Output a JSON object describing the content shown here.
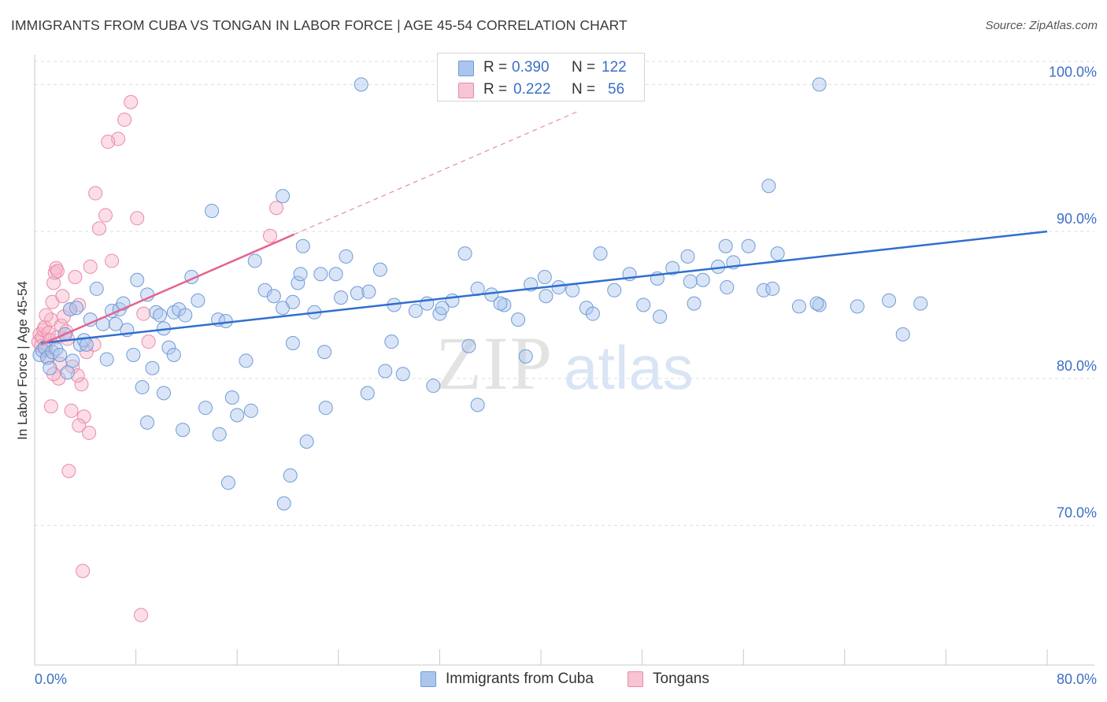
{
  "header": {
    "title": "IMMIGRANTS FROM CUBA VS TONGAN IN LABOR FORCE | AGE 45-54 CORRELATION CHART",
    "source": "Source: ZipAtlas.com"
  },
  "legend_stats": {
    "r_label": "R =",
    "n_label": "N =",
    "rows": [
      {
        "r": "0.390",
        "n": "122"
      },
      {
        "r": "0.222",
        "n": "56"
      }
    ]
  },
  "bottom_legend": {
    "series1": "Immigrants from Cuba",
    "series2": "Tongans"
  },
  "watermark": {
    "zip": "ZIP",
    "atlas": "atlas"
  },
  "colors": {
    "blue_fill": "#aac6ee",
    "blue_stroke": "#6f9bd8",
    "blue_line": "#2f6fd0",
    "pink_fill": "#f6b6c9",
    "pink_stroke": "#ea8aa8",
    "pink_line": "#e4648f",
    "tick_label": "#3b6fc4",
    "grid": "#dddddd"
  },
  "chart_data": {
    "type": "scatter",
    "title": "IMMIGRANTS FROM CUBA VS TONGAN IN LABOR FORCE | AGE 45-54 CORRELATION CHART",
    "xlabel": "",
    "ylabel": "In Labor Force | Age 45-54",
    "xlim": [
      0,
      80
    ],
    "ylim": [
      60.5,
      102
    ],
    "x_tick_labels": [
      "0.0%",
      "80.0%"
    ],
    "y_ticks": [
      70,
      80,
      90,
      100
    ],
    "y_tick_labels": [
      "70.0%",
      "80.0%",
      "90.0%",
      "100.0%"
    ],
    "grid": true,
    "legend_position": "top-center",
    "series": [
      {
        "name": "Immigrants from Cuba",
        "R": 0.39,
        "N": 122,
        "trend": {
          "x": [
            0.5,
            80
          ],
          "y": [
            82.4,
            90.0
          ]
        },
        "points": [
          [
            0.4,
            81.6
          ],
          [
            0.6,
            81.9
          ],
          [
            0.8,
            82.1
          ],
          [
            1.0,
            81.4
          ],
          [
            1.2,
            80.7
          ],
          [
            1.4,
            81.8
          ],
          [
            1.7,
            82.0
          ],
          [
            2.0,
            81.6
          ],
          [
            2.4,
            83.0
          ],
          [
            2.6,
            80.4
          ],
          [
            2.8,
            84.7
          ],
          [
            3.0,
            81.2
          ],
          [
            3.3,
            84.8
          ],
          [
            3.6,
            82.3
          ],
          [
            3.9,
            82.6
          ],
          [
            4.1,
            82.3
          ],
          [
            4.4,
            84.0
          ],
          [
            4.9,
            86.1
          ],
          [
            5.4,
            83.7
          ],
          [
            5.7,
            81.3
          ],
          [
            6.1,
            84.6
          ],
          [
            6.7,
            84.7
          ],
          [
            7.0,
            85.1
          ],
          [
            7.3,
            83.3
          ],
          [
            7.8,
            81.6
          ],
          [
            8.1,
            86.7
          ],
          [
            8.5,
            79.4
          ],
          [
            8.9,
            85.7
          ],
          [
            9.3,
            80.7
          ],
          [
            9.6,
            84.5
          ],
          [
            9.9,
            84.3
          ],
          [
            10.2,
            83.4
          ],
          [
            10.6,
            82.1
          ],
          [
            11.0,
            84.5
          ],
          [
            11.4,
            84.7
          ],
          [
            11.9,
            84.3
          ],
          [
            12.4,
            86.9
          ],
          [
            12.9,
            85.3
          ],
          [
            13.5,
            78.0
          ],
          [
            14.0,
            91.4
          ],
          [
            14.5,
            84.0
          ],
          [
            15.3,
            72.9
          ],
          [
            16.0,
            77.5
          ],
          [
            16.7,
            81.2
          ],
          [
            17.4,
            88.0
          ],
          [
            18.2,
            86.0
          ],
          [
            18.9,
            85.6
          ],
          [
            19.6,
            84.8
          ],
          [
            20.4,
            85.2
          ],
          [
            21.2,
            89.0
          ],
          [
            22.1,
            84.5
          ],
          [
            22.9,
            81.8
          ],
          [
            23.8,
            87.1
          ],
          [
            24.6,
            88.3
          ],
          [
            25.5,
            85.8
          ],
          [
            26.4,
            85.9
          ],
          [
            27.3,
            87.4
          ],
          [
            28.2,
            82.5
          ],
          [
            29.1,
            80.3
          ],
          [
            30.1,
            84.6
          ],
          [
            31.0,
            85.1
          ],
          [
            32.0,
            84.4
          ],
          [
            33.0,
            85.3
          ],
          [
            34.0,
            88.5
          ],
          [
            35.0,
            86.1
          ],
          [
            36.1,
            85.7
          ],
          [
            37.1,
            85.0
          ],
          [
            38.2,
            84.0
          ],
          [
            39.2,
            86.4
          ],
          [
            40.3,
            86.9
          ],
          [
            41.4,
            86.2
          ],
          [
            42.5,
            86.0
          ],
          [
            43.6,
            84.8
          ],
          [
            44.7,
            88.5
          ],
          [
            45.8,
            86.0
          ],
          [
            47.0,
            87.1
          ],
          [
            48.1,
            85.0
          ],
          [
            49.2,
            86.8
          ],
          [
            50.4,
            87.5
          ],
          [
            51.6,
            88.3
          ],
          [
            52.8,
            86.7
          ],
          [
            54.0,
            87.6
          ],
          [
            55.2,
            87.9
          ],
          [
            56.4,
            89.0
          ],
          [
            57.6,
            86.0
          ],
          [
            21.5,
            75.7
          ],
          [
            20.2,
            73.4
          ],
          [
            19.7,
            71.5
          ],
          [
            23.0,
            78.0
          ],
          [
            26.3,
            79.0
          ],
          [
            31.5,
            79.5
          ],
          [
            27.7,
            80.5
          ],
          [
            35.0,
            78.2
          ],
          [
            20.8,
            86.5
          ],
          [
            21.0,
            87.1
          ],
          [
            22.6,
            87.1
          ],
          [
            15.6,
            78.7
          ],
          [
            17.1,
            77.8
          ],
          [
            10.2,
            79.0
          ],
          [
            8.9,
            77.0
          ],
          [
            11.7,
            76.5
          ],
          [
            14.6,
            76.2
          ],
          [
            6.4,
            83.7
          ],
          [
            11.0,
            81.6
          ],
          [
            15.1,
            83.9
          ],
          [
            20.4,
            82.4
          ],
          [
            34.3,
            82.2
          ],
          [
            38.8,
            81.5
          ],
          [
            24.2,
            85.5
          ],
          [
            28.4,
            85.0
          ],
          [
            32.2,
            84.8
          ],
          [
            36.8,
            85.1
          ],
          [
            40.4,
            85.6
          ],
          [
            44.1,
            84.4
          ],
          [
            49.4,
            84.2
          ],
          [
            52.1,
            85.1
          ],
          [
            54.7,
            86.2
          ],
          [
            58.3,
            86.1
          ],
          [
            62.0,
            85.0
          ],
          [
            65.0,
            84.9
          ],
          [
            67.5,
            85.3
          ],
          [
            68.6,
            83.0
          ],
          [
            70.0,
            85.1
          ],
          [
            61.8,
            85.1
          ],
          [
            58.0,
            93.1
          ],
          [
            19.6,
            92.4
          ],
          [
            62.0,
            100.0
          ],
          [
            25.8,
            100.0
          ],
          [
            60.4,
            84.9
          ],
          [
            58.7,
            88.5
          ],
          [
            54.6,
            89.0
          ],
          [
            51.8,
            86.6
          ]
        ]
      },
      {
        "name": "Tongans",
        "R": 0.222,
        "N": 56,
        "trend": {
          "x": [
            0.5,
            20.5
          ],
          "y": [
            82.3,
            89.8
          ]
        },
        "trend_extension": {
          "x": [
            20.5,
            43.0
          ],
          "y": [
            89.8,
            98.2
          ]
        },
        "points": [
          [
            0.3,
            82.5
          ],
          [
            0.4,
            83.0
          ],
          [
            0.5,
            82.2
          ],
          [
            0.6,
            82.8
          ],
          [
            0.7,
            83.3
          ],
          [
            0.8,
            83.5
          ],
          [
            0.9,
            82.0
          ],
          [
            1.0,
            81.5
          ],
          [
            1.1,
            83.1
          ],
          [
            1.2,
            82.6
          ],
          [
            1.3,
            84.0
          ],
          [
            1.4,
            85.2
          ],
          [
            1.5,
            86.5
          ],
          [
            1.6,
            87.2
          ],
          [
            1.7,
            87.5
          ],
          [
            1.8,
            82.8
          ],
          [
            1.9,
            80.0
          ],
          [
            2.0,
            81.0
          ],
          [
            2.1,
            83.6
          ],
          [
            2.3,
            84.2
          ],
          [
            2.5,
            83.2
          ],
          [
            2.6,
            82.7
          ],
          [
            2.8,
            84.7
          ],
          [
            3.0,
            80.8
          ],
          [
            3.2,
            86.9
          ],
          [
            3.5,
            85.0
          ],
          [
            3.7,
            79.6
          ],
          [
            3.9,
            77.4
          ],
          [
            4.1,
            81.8
          ],
          [
            4.4,
            87.6
          ],
          [
            4.7,
            82.3
          ],
          [
            5.1,
            90.2
          ],
          [
            5.6,
            91.1
          ],
          [
            6.1,
            88.0
          ],
          [
            6.6,
            96.3
          ],
          [
            7.1,
            97.6
          ],
          [
            7.6,
            98.8
          ],
          [
            8.1,
            90.9
          ],
          [
            8.6,
            84.4
          ],
          [
            9.0,
            82.5
          ],
          [
            3.5,
            76.8
          ],
          [
            4.3,
            76.3
          ],
          [
            2.9,
            77.8
          ],
          [
            1.5,
            80.3
          ],
          [
            2.7,
            73.7
          ],
          [
            3.4,
            80.2
          ],
          [
            4.8,
            92.6
          ],
          [
            5.8,
            96.1
          ],
          [
            3.8,
            66.9
          ],
          [
            8.4,
            63.9
          ],
          [
            18.6,
            89.7
          ],
          [
            19.1,
            91.6
          ],
          [
            1.3,
            78.1
          ],
          [
            0.9,
            84.3
          ],
          [
            2.2,
            85.6
          ],
          [
            1.8,
            87.3
          ]
        ]
      }
    ]
  }
}
